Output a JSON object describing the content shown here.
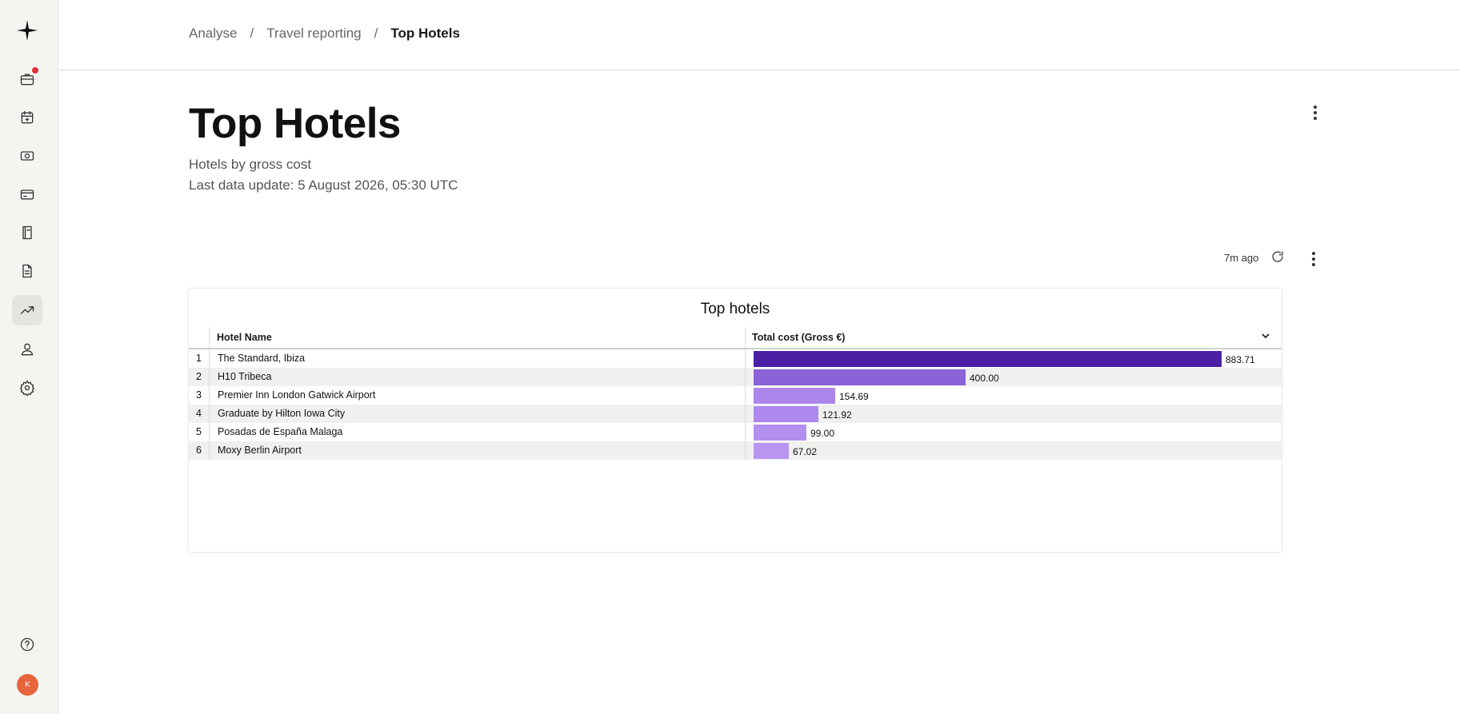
{
  "sidebar": {
    "items": [
      {
        "name": "trips-icon",
        "active": false,
        "notification": true
      },
      {
        "name": "calendar-icon",
        "active": false
      },
      {
        "name": "money-icon",
        "active": false
      },
      {
        "name": "card-icon",
        "active": false
      },
      {
        "name": "book-icon",
        "active": false
      },
      {
        "name": "document-icon",
        "active": false
      },
      {
        "name": "analytics-icon",
        "active": true
      },
      {
        "name": "user-icon",
        "active": false
      },
      {
        "name": "settings-icon",
        "active": false
      }
    ],
    "help_icon": "help-icon",
    "avatar_initial": "K"
  },
  "breadcrumb": {
    "items": [
      "Analyse",
      "Travel reporting"
    ],
    "separator": "/",
    "current": "Top Hotels"
  },
  "page": {
    "title": "Top Hotels",
    "subtitle": "Hotels by gross cost",
    "last_update": "Last data update: 5 August 2026, 05:30 UTC",
    "refreshed": "7m ago"
  },
  "table": {
    "title": "Top hotels",
    "col_name": "Hotel Name",
    "col_cost": "Total cost (Gross €)",
    "max_value": 883.71,
    "rows": [
      {
        "idx": "1",
        "name": "The Standard, Ibiza",
        "value": 883.71,
        "label": "883.71",
        "color": "#4a1fa3"
      },
      {
        "idx": "2",
        "name": "H10 Tribeca",
        "value": 400.0,
        "label": "400.00",
        "color": "#8a63d8"
      },
      {
        "idx": "3",
        "name": "Premier Inn London Gatwick Airport",
        "value": 154.69,
        "label": "154.69",
        "color": "#aa85ea"
      },
      {
        "idx": "4",
        "name": "Graduate by Hilton Iowa City",
        "value": 121.92,
        "label": "121.92",
        "color": "#ae88ec"
      },
      {
        "idx": "5",
        "name": "Posadas de España Malaga",
        "value": 99.0,
        "label": "99.00",
        "color": "#b38ff0"
      },
      {
        "idx": "6",
        "name": "Moxy Berlin Airport",
        "value": 67.02,
        "label": "67.02",
        "color": "#b995f2"
      }
    ]
  }
}
